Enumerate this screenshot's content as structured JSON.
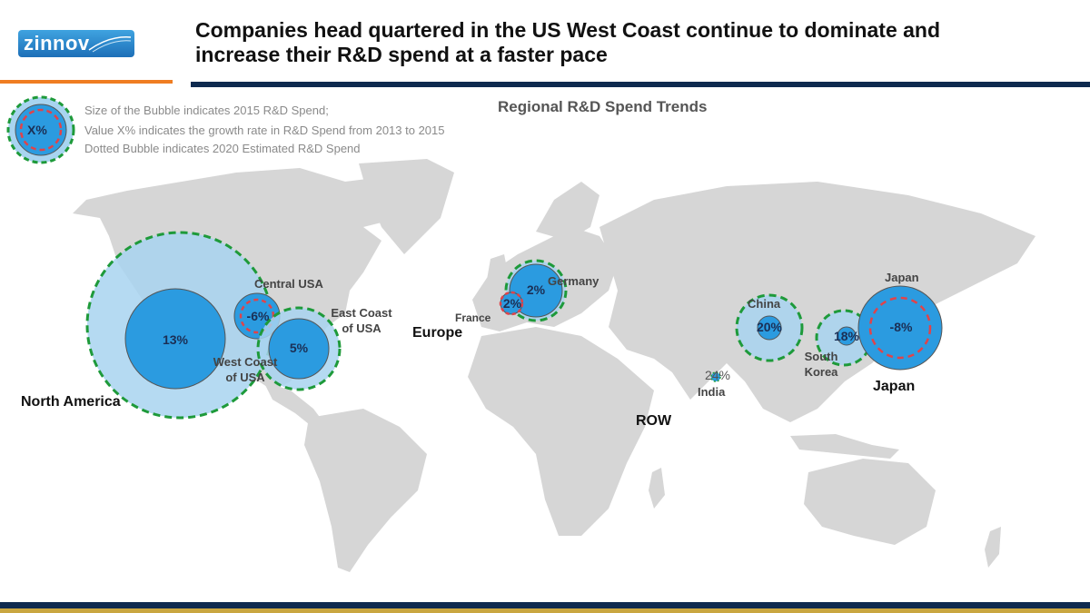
{
  "header": {
    "logo_text": "zinnov",
    "title_line1": "Companies head quartered in the US West Coast continue to dominate and",
    "title_line2": "increase their R&D spend at a faster pace"
  },
  "legend": {
    "sample_label": "X%",
    "lines": [
      "Size of the Bubble indicates 2015 R&D Spend;",
      "Value X% indicates the growth rate in R&D Spend from 2013 to 2015",
      "Dotted Bubble indicates 2020 Estimated R&D Spend"
    ]
  },
  "map_title": "Regional R&D Spend Trends",
  "regions": {
    "north_america": "North America",
    "europe": "Europe",
    "row": "ROW",
    "japan": "Japan"
  },
  "bubbles": {
    "west_coast": {
      "value": "13%",
      "label_line1": "West Coast",
      "label_line2": "of USA"
    },
    "central_usa": {
      "value": "-6%",
      "label": "Central USA"
    },
    "east_coast": {
      "value": "5%",
      "label_line1": "East Coast",
      "label_line2": "of USA"
    },
    "germany": {
      "value": "2%",
      "label": "Germany"
    },
    "france": {
      "value": "2%",
      "label": "France"
    },
    "china": {
      "value": "20%",
      "label": "China"
    },
    "india": {
      "value": "24%",
      "label": "India"
    },
    "south_korea": {
      "value": "18%",
      "label_line1": "South",
      "label_line2": "Korea"
    },
    "japan": {
      "value": "-8%",
      "label": "Japan"
    }
  },
  "colors": {
    "bubble_fill": "#2b9be0",
    "bubble_light": "#a8d4f0",
    "dotted_ring": "#1e9a3a",
    "red_ring": "#e0434a",
    "land": "#d6d6d6",
    "navy": "#0e2a4f",
    "orange": "#ef7d22"
  }
}
